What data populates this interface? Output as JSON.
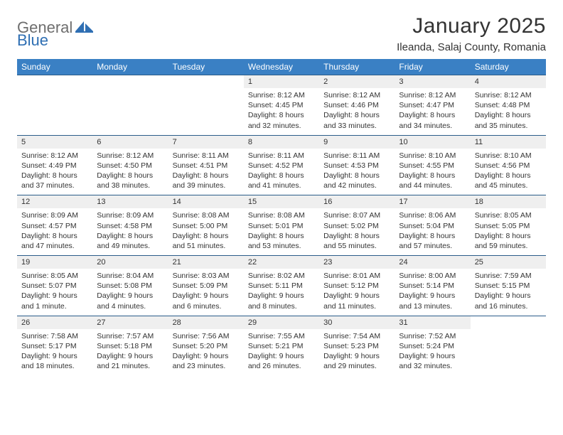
{
  "brand": {
    "part1": "General",
    "part2": "Blue"
  },
  "title": "January 2025",
  "location": "Ileanda, Salaj County, Romania",
  "colors": {
    "header_bg": "#3a80c4",
    "border": "#2b5d8a",
    "daynum_bg": "#efefef",
    "text": "#333333",
    "brand_gray": "#6e6e6e",
    "brand_blue": "#2f6fb3"
  },
  "weekdays": [
    "Sunday",
    "Monday",
    "Tuesday",
    "Wednesday",
    "Thursday",
    "Friday",
    "Saturday"
  ],
  "weeks": [
    [
      null,
      null,
      null,
      {
        "n": "1",
        "sr": "8:12 AM",
        "ss": "4:45 PM",
        "dl": "8 hours and 32 minutes."
      },
      {
        "n": "2",
        "sr": "8:12 AM",
        "ss": "4:46 PM",
        "dl": "8 hours and 33 minutes."
      },
      {
        "n": "3",
        "sr": "8:12 AM",
        "ss": "4:47 PM",
        "dl": "8 hours and 34 minutes."
      },
      {
        "n": "4",
        "sr": "8:12 AM",
        "ss": "4:48 PM",
        "dl": "8 hours and 35 minutes."
      }
    ],
    [
      {
        "n": "5",
        "sr": "8:12 AM",
        "ss": "4:49 PM",
        "dl": "8 hours and 37 minutes."
      },
      {
        "n": "6",
        "sr": "8:12 AM",
        "ss": "4:50 PM",
        "dl": "8 hours and 38 minutes."
      },
      {
        "n": "7",
        "sr": "8:11 AM",
        "ss": "4:51 PM",
        "dl": "8 hours and 39 minutes."
      },
      {
        "n": "8",
        "sr": "8:11 AM",
        "ss": "4:52 PM",
        "dl": "8 hours and 41 minutes."
      },
      {
        "n": "9",
        "sr": "8:11 AM",
        "ss": "4:53 PM",
        "dl": "8 hours and 42 minutes."
      },
      {
        "n": "10",
        "sr": "8:10 AM",
        "ss": "4:55 PM",
        "dl": "8 hours and 44 minutes."
      },
      {
        "n": "11",
        "sr": "8:10 AM",
        "ss": "4:56 PM",
        "dl": "8 hours and 45 minutes."
      }
    ],
    [
      {
        "n": "12",
        "sr": "8:09 AM",
        "ss": "4:57 PM",
        "dl": "8 hours and 47 minutes."
      },
      {
        "n": "13",
        "sr": "8:09 AM",
        "ss": "4:58 PM",
        "dl": "8 hours and 49 minutes."
      },
      {
        "n": "14",
        "sr": "8:08 AM",
        "ss": "5:00 PM",
        "dl": "8 hours and 51 minutes."
      },
      {
        "n": "15",
        "sr": "8:08 AM",
        "ss": "5:01 PM",
        "dl": "8 hours and 53 minutes."
      },
      {
        "n": "16",
        "sr": "8:07 AM",
        "ss": "5:02 PM",
        "dl": "8 hours and 55 minutes."
      },
      {
        "n": "17",
        "sr": "8:06 AM",
        "ss": "5:04 PM",
        "dl": "8 hours and 57 minutes."
      },
      {
        "n": "18",
        "sr": "8:05 AM",
        "ss": "5:05 PM",
        "dl": "8 hours and 59 minutes."
      }
    ],
    [
      {
        "n": "19",
        "sr": "8:05 AM",
        "ss": "5:07 PM",
        "dl": "9 hours and 1 minute."
      },
      {
        "n": "20",
        "sr": "8:04 AM",
        "ss": "5:08 PM",
        "dl": "9 hours and 4 minutes."
      },
      {
        "n": "21",
        "sr": "8:03 AM",
        "ss": "5:09 PM",
        "dl": "9 hours and 6 minutes."
      },
      {
        "n": "22",
        "sr": "8:02 AM",
        "ss": "5:11 PM",
        "dl": "9 hours and 8 minutes."
      },
      {
        "n": "23",
        "sr": "8:01 AM",
        "ss": "5:12 PM",
        "dl": "9 hours and 11 minutes."
      },
      {
        "n": "24",
        "sr": "8:00 AM",
        "ss": "5:14 PM",
        "dl": "9 hours and 13 minutes."
      },
      {
        "n": "25",
        "sr": "7:59 AM",
        "ss": "5:15 PM",
        "dl": "9 hours and 16 minutes."
      }
    ],
    [
      {
        "n": "26",
        "sr": "7:58 AM",
        "ss": "5:17 PM",
        "dl": "9 hours and 18 minutes."
      },
      {
        "n": "27",
        "sr": "7:57 AM",
        "ss": "5:18 PM",
        "dl": "9 hours and 21 minutes."
      },
      {
        "n": "28",
        "sr": "7:56 AM",
        "ss": "5:20 PM",
        "dl": "9 hours and 23 minutes."
      },
      {
        "n": "29",
        "sr": "7:55 AM",
        "ss": "5:21 PM",
        "dl": "9 hours and 26 minutes."
      },
      {
        "n": "30",
        "sr": "7:54 AM",
        "ss": "5:23 PM",
        "dl": "9 hours and 29 minutes."
      },
      {
        "n": "31",
        "sr": "7:52 AM",
        "ss": "5:24 PM",
        "dl": "9 hours and 32 minutes."
      },
      null
    ]
  ],
  "labels": {
    "sunrise": "Sunrise:",
    "sunset": "Sunset:",
    "daylight": "Daylight:"
  }
}
